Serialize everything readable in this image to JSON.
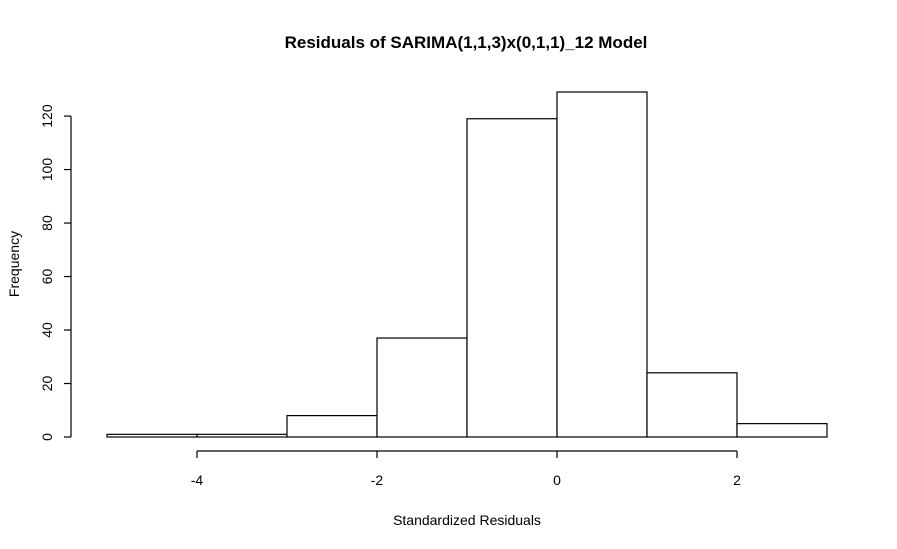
{
  "chart_data": {
    "type": "bar",
    "title": "Residuals of SARIMA(1,1,3)x(0,1,1)_12 Model",
    "xlabel": "Standardized Residuals",
    "ylabel": "Frequency",
    "bin_edges": [
      -5,
      -4,
      -3,
      -2,
      -1,
      0,
      1,
      2,
      3
    ],
    "values": [
      1,
      1,
      8,
      37,
      119,
      129,
      24,
      5
    ],
    "x_ticks": [
      -4,
      -2,
      0,
      2
    ],
    "x_tick_labels": [
      "-4",
      "-2",
      "0",
      "2"
    ],
    "y_ticks": [
      0,
      20,
      40,
      60,
      80,
      100,
      120
    ],
    "y_tick_labels": [
      "0",
      "20",
      "40",
      "60",
      "80",
      "100",
      "120"
    ],
    "xlim": [
      -5,
      3
    ],
    "ylim": [
      0,
      129
    ],
    "grid": false,
    "colors": {
      "bar_fill": "#ffffff",
      "bar_stroke": "#000000"
    }
  }
}
